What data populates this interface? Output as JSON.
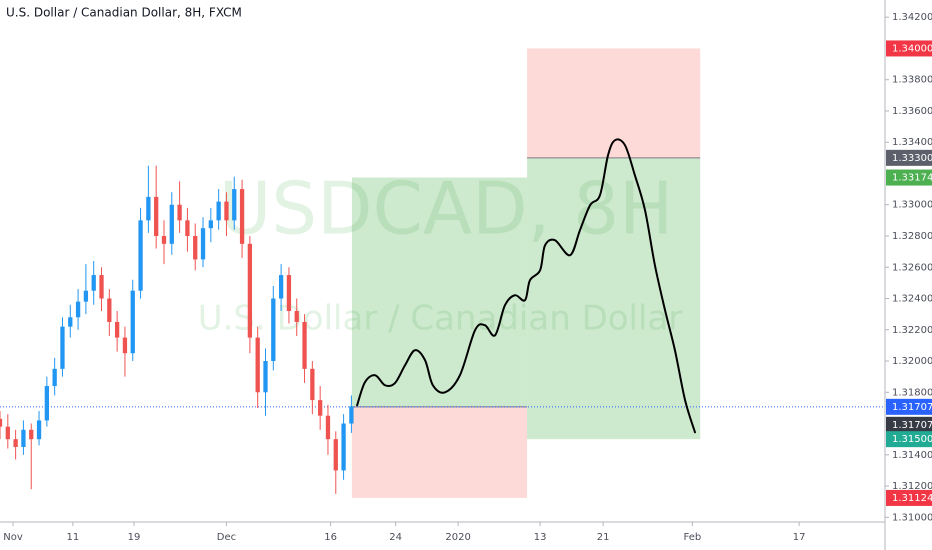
{
  "chart_data": {
    "type": "candlestick",
    "title": "U.S. Dollar / Canadian Dollar, 8H, FXCM",
    "watermark": "USDCAD, 8H",
    "watermark_subtitle": "U.S. Dollar / Canadian Dollar",
    "xlim": [
      0,
      340
    ],
    "ylim": [
      1.3097,
      1.3431
    ],
    "xticks": [
      {
        "value": 5,
        "label": "Nov"
      },
      {
        "value": 28,
        "label": "11"
      },
      {
        "value": 51.5,
        "label": "19"
      },
      {
        "value": 87,
        "label": "Dec"
      },
      {
        "value": 127,
        "label": "16"
      },
      {
        "value": 152,
        "label": "24"
      },
      {
        "value": 176,
        "label": "2020"
      },
      {
        "value": 207.5,
        "label": "13"
      },
      {
        "value": 231.7,
        "label": "21"
      },
      {
        "value": 266,
        "label": "Feb"
      },
      {
        "value": 307,
        "label": "17"
      }
    ],
    "yticks": [
      {
        "value": 1.31,
        "label": "1.31000"
      },
      {
        "value": 1.312,
        "label": "1.31200"
      },
      {
        "value": 1.314,
        "label": "1.31400"
      },
      {
        "value": 1.318,
        "label": "1.31800"
      },
      {
        "value": 1.32,
        "label": "1.32000"
      },
      {
        "value": 1.322,
        "label": "1.32200"
      },
      {
        "value": 1.324,
        "label": "1.32400"
      },
      {
        "value": 1.326,
        "label": "1.32600"
      },
      {
        "value": 1.328,
        "label": "1.32800"
      },
      {
        "value": 1.33,
        "label": "1.33000"
      },
      {
        "value": 1.334,
        "label": "1.33400"
      },
      {
        "value": 1.336,
        "label": "1.33600"
      },
      {
        "value": 1.338,
        "label": "1.33800"
      },
      {
        "value": 1.342,
        "label": "1.34200"
      }
    ],
    "grid": false,
    "up_color": "#2196f3",
    "down_color": "#ef5350",
    "x": [
      0,
      3,
      6,
      9,
      12,
      15,
      18,
      21,
      24,
      27,
      30,
      33,
      36,
      39,
      42,
      45,
      48,
      51,
      54,
      57,
      60,
      63,
      66,
      69,
      72,
      75,
      78,
      81,
      84,
      87,
      90,
      93,
      96,
      99,
      102,
      105,
      108,
      111,
      114,
      117,
      120,
      123,
      126,
      129,
      132,
      135
    ],
    "open": [
      1.3163,
      1.3158,
      1.315,
      1.3145,
      1.3156,
      1.315,
      1.3162,
      1.3184,
      1.3195,
      1.3222,
      1.3228,
      1.3238,
      1.3245,
      1.3255,
      1.324,
      1.3225,
      1.3215,
      1.3205,
      1.3245,
      1.329,
      1.3305,
      1.328,
      1.3275,
      1.33,
      1.329,
      1.328,
      1.3265,
      1.3285,
      1.329,
      1.3302,
      1.329,
      1.331,
      1.3275,
      1.3215,
      1.318,
      1.32,
      1.324,
      1.3255,
      1.3232,
      1.3225,
      1.3195,
      1.3175,
      1.3165,
      1.315,
      1.313,
      1.316
    ],
    "high": [
      1.3168,
      1.3166,
      1.3156,
      1.3162,
      1.316,
      1.3168,
      1.319,
      1.3202,
      1.3228,
      1.3236,
      1.3246,
      1.3262,
      1.3264,
      1.326,
      1.3246,
      1.3232,
      1.3222,
      1.3252,
      1.3298,
      1.3325,
      1.3325,
      1.329,
      1.3308,
      1.3315,
      1.3298,
      1.3288,
      1.3292,
      1.3298,
      1.331,
      1.3308,
      1.3318,
      1.3316,
      1.328,
      1.3222,
      1.3208,
      1.3248,
      1.3262,
      1.326,
      1.324,
      1.323,
      1.32,
      1.3184,
      1.3172,
      1.3155,
      1.3166,
      1.3178
    ],
    "low": [
      1.315,
      1.3144,
      1.3137,
      1.314,
      1.3118,
      1.3146,
      1.3158,
      1.3178,
      1.319,
      1.3215,
      1.322,
      1.323,
      1.3236,
      1.3232,
      1.3216,
      1.3206,
      1.319,
      1.32,
      1.324,
      1.3282,
      1.3272,
      1.3262,
      1.3268,
      1.3282,
      1.327,
      1.3258,
      1.326,
      1.3276,
      1.3284,
      1.328,
      1.3284,
      1.3266,
      1.3205,
      1.317,
      1.3165,
      1.3194,
      1.3232,
      1.3224,
      1.3216,
      1.3186,
      1.3166,
      1.3156,
      1.314,
      1.3115,
      1.3124,
      1.3154
    ],
    "close": [
      1.3158,
      1.315,
      1.3145,
      1.3156,
      1.315,
      1.3162,
      1.3184,
      1.3195,
      1.3222,
      1.3228,
      1.3238,
      1.3245,
      1.3255,
      1.324,
      1.3225,
      1.3215,
      1.3205,
      1.3245,
      1.329,
      1.3305,
      1.328,
      1.3275,
      1.33,
      1.329,
      1.328,
      1.3265,
      1.3285,
      1.329,
      1.3302,
      1.329,
      1.331,
      1.3275,
      1.3215,
      1.318,
      1.32,
      1.324,
      1.3255,
      1.3232,
      1.3225,
      1.3195,
      1.3175,
      1.3165,
      1.315,
      1.313,
      1.316,
      1.3171
    ],
    "last_price": 1.31707,
    "last_price_color": "#2962ff",
    "positions": [
      {
        "x_start": 135.2,
        "x_end": 202.5,
        "entry": 1.31707,
        "target": 1.33174,
        "stop": 1.31124
      },
      {
        "x_start": 202.5,
        "x_end": 269,
        "entry": 1.333,
        "target": 1.315,
        "stop": 1.34
      }
    ],
    "profit_color": "#4caf50",
    "stop_color": "#f44336",
    "drawing": {
      "color": "#000000",
      "x": [
        137.2,
        140.2,
        144.1,
        147.9,
        151.7,
        155.6,
        159.4,
        163.3,
        166.3,
        171.0,
        176.7,
        182.5,
        186.3,
        190.2,
        194.0,
        197.8,
        201.7,
        203.6,
        207.5,
        209.4,
        213.2,
        219.0,
        222.8,
        226.7,
        230.5,
        233.6,
        236.3,
        240.1,
        243.9,
        247.8,
        251.6,
        255.5,
        259.3,
        263.2,
        267.0
      ],
      "y": [
        1.31717,
        1.31864,
        1.31909,
        1.31845,
        1.31858,
        1.31973,
        1.32069,
        1.32005,
        1.31845,
        1.318,
        1.31909,
        1.32197,
        1.32229,
        1.32165,
        1.32357,
        1.32421,
        1.32389,
        1.32517,
        1.32581,
        1.32741,
        1.32773,
        1.32677,
        1.32837,
        1.32997,
        1.33061,
        1.33317,
        1.33413,
        1.33381,
        1.33189,
        1.32965,
        1.32613,
        1.32325,
        1.32069,
        1.31749,
        1.31544
      ]
    },
    "price_labels": [
      {
        "value": 1.34,
        "label": "1.34000",
        "color": "#f23645"
      },
      {
        "value": 1.333,
        "label": "1.33300",
        "color": "#5d606b"
      },
      {
        "value": 1.33174,
        "label": "1.33174",
        "color": "#4caf50"
      },
      {
        "value": 1.31707,
        "label": "1.31707",
        "color": "#2962ff"
      },
      {
        "value": 1.31707,
        "label": "1.31707",
        "color": "#363a45"
      },
      {
        "value": 1.315,
        "label": "1.31500",
        "color": "#22ab94"
      },
      {
        "value": 1.31124,
        "label": "1.31124",
        "color": "#f23645"
      }
    ]
  }
}
